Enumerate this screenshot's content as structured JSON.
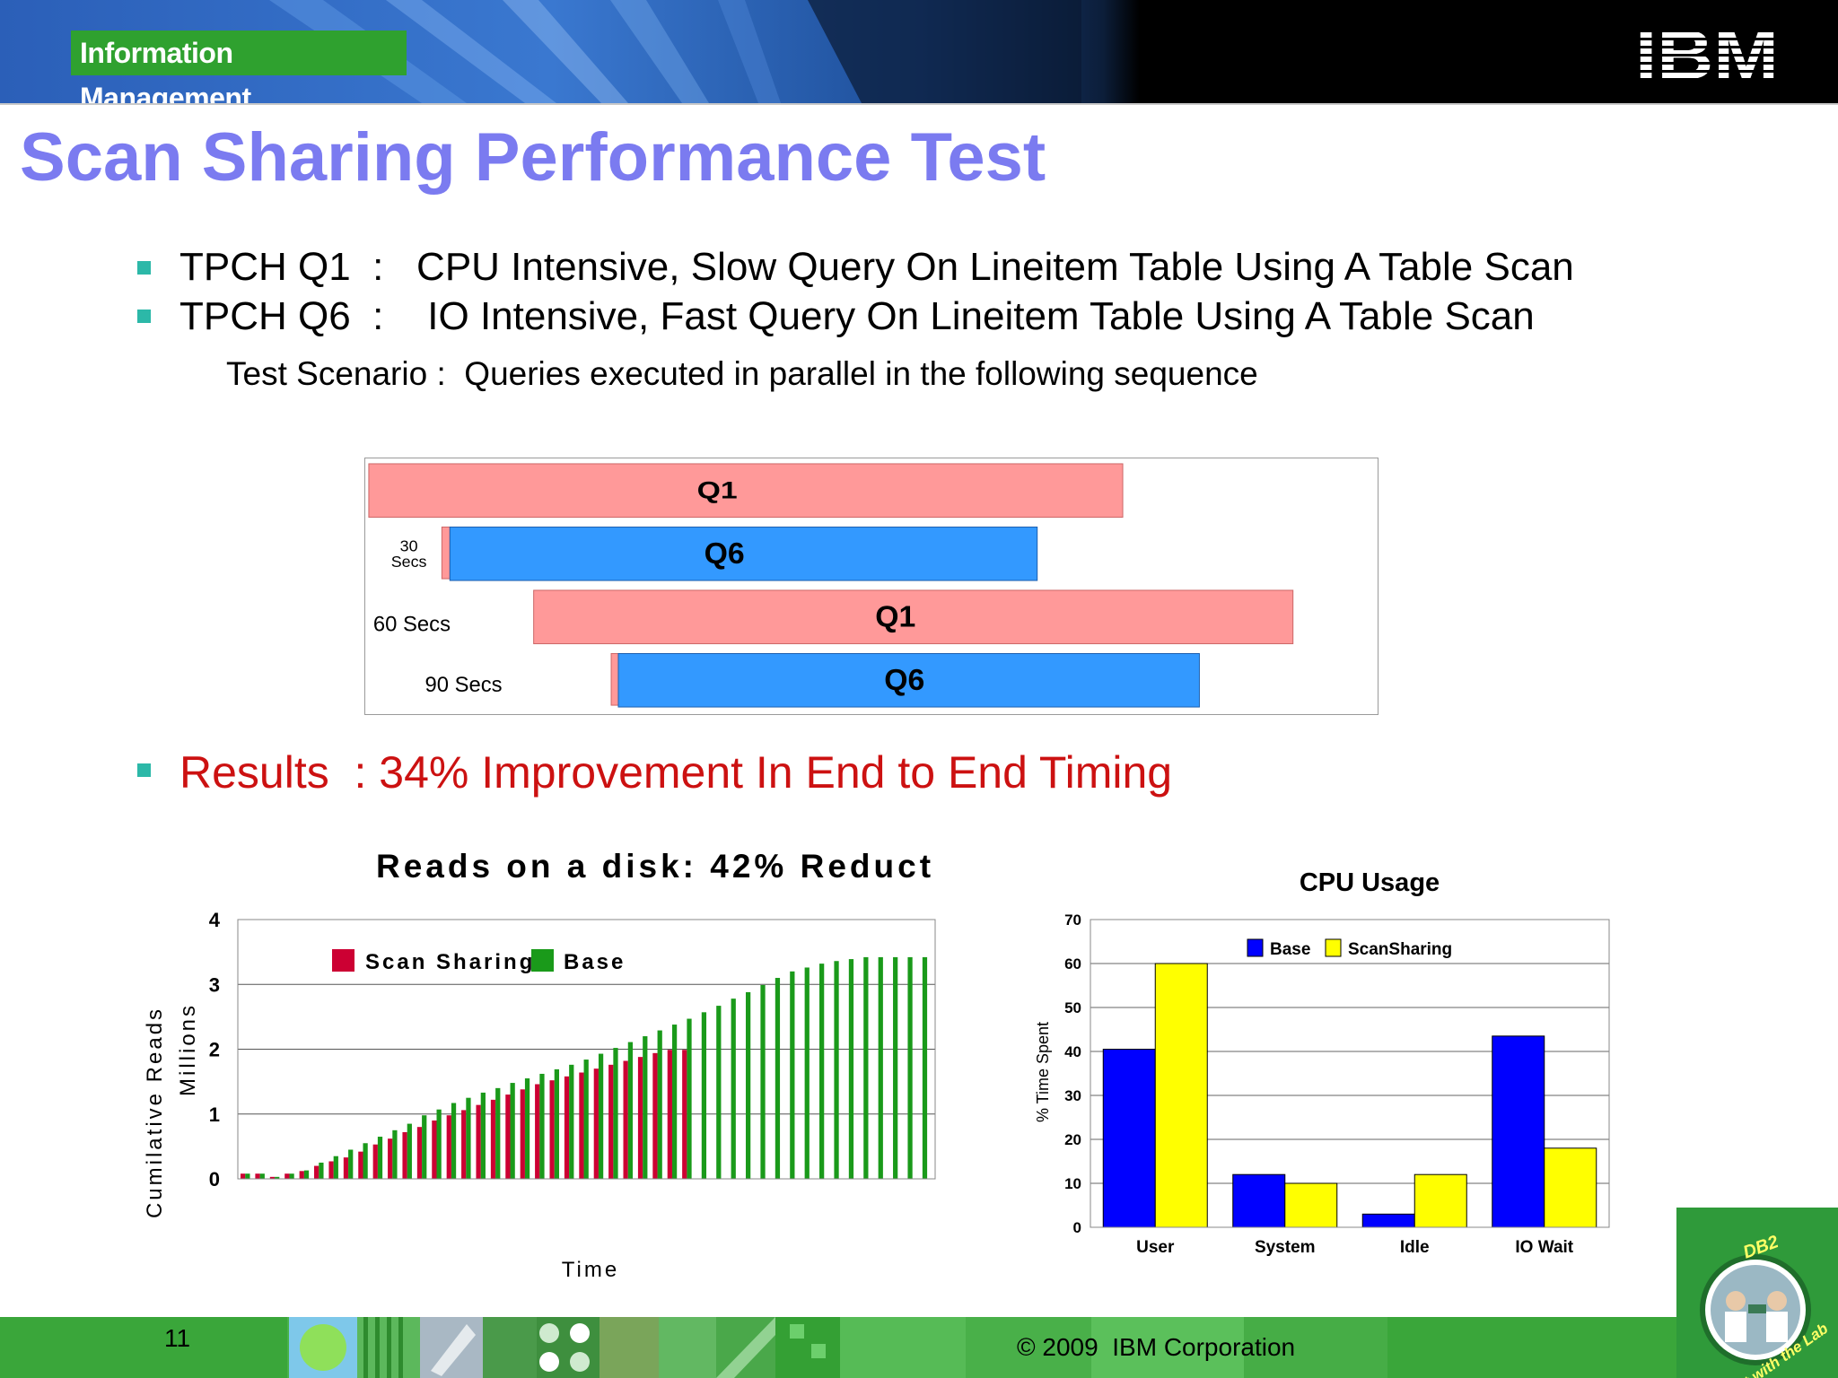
{
  "header": {
    "brand": "Information Management",
    "logo_text": "IBM"
  },
  "title": "Scan Sharing Performance Test",
  "bullets": [
    "TPCH Q1  :   CPU Intensive, Slow Query On Lineitem Table Using A Table Scan",
    "TPCH Q6  :    IO Intensive, Fast Query On Lineitem Table Using A Table Scan"
  ],
  "scenario": "Test Scenario :  Queries executed in parallel in the following sequence",
  "diagram": {
    "bars": [
      {
        "label": "Q1",
        "color": "#ff9999"
      },
      {
        "label": "Q6",
        "color": "#3399ff"
      },
      {
        "label": "Q1",
        "color": "#ff9999"
      },
      {
        "label": "Q6",
        "color": "#3399ff"
      }
    ],
    "delay_labels": [
      "30",
      "Secs",
      "60  Secs",
      "90  Secs"
    ]
  },
  "results": "Results  : 34% Improvement In End to End Timing",
  "chart_data": [
    {
      "type": "bar",
      "title": "Reads on a disk: 42% Reduct",
      "xlabel": "Time",
      "ylabel": "Cumilative Reads",
      "ylabel2": "Millions",
      "ylim": [
        0,
        4
      ],
      "yticks": [
        "0",
        "1",
        "2",
        "3",
        "4"
      ],
      "legend": [
        "Scan Sharing",
        "Base"
      ],
      "series": [
        {
          "name": "Scan Sharing",
          "color": "#cc0033",
          "values": [
            0.08,
            0.08,
            0.03,
            0.08,
            0.12,
            0.2,
            0.27,
            0.33,
            0.42,
            0.53,
            0.62,
            0.72,
            0.8,
            0.9,
            0.98,
            1.06,
            1.14,
            1.22,
            1.3,
            1.38,
            1.46,
            1.52,
            1.58,
            1.64,
            1.7,
            1.76,
            1.82,
            1.88,
            1.94,
            1.99,
            1.99
          ]
        },
        {
          "name": "Base",
          "color": "#1a9a1a",
          "values": [
            0.08,
            0.08,
            0.03,
            0.08,
            0.13,
            0.25,
            0.35,
            0.45,
            0.55,
            0.65,
            0.75,
            0.85,
            0.98,
            1.07,
            1.17,
            1.25,
            1.33,
            1.4,
            1.48,
            1.55,
            1.62,
            1.69,
            1.76,
            1.84,
            1.93,
            2.02,
            2.11,
            2.2,
            2.29,
            2.38,
            2.47,
            2.57,
            2.67,
            2.78,
            2.88,
            2.99,
            3.1,
            3.2,
            3.26,
            3.32,
            3.36,
            3.39,
            3.42,
            3.42,
            3.42,
            3.42,
            3.42
          ]
        }
      ]
    },
    {
      "type": "bar",
      "title": "CPU Usage",
      "ylabel": "% Time Spent",
      "ylim": [
        0,
        70
      ],
      "yticks": [
        "0",
        "10",
        "20",
        "30",
        "40",
        "50",
        "60",
        "70"
      ],
      "categories": [
        "User",
        "System",
        "Idle",
        "IO Wait"
      ],
      "series": [
        {
          "name": "Base",
          "color": "#0000ff",
          "values": [
            40.5,
            12,
            3,
            43.5
          ]
        },
        {
          "name": "ScanSharing",
          "color": "#ffff00",
          "values": [
            60,
            10,
            12,
            18
          ]
        }
      ]
    }
  ],
  "footer": {
    "page": "11",
    "copyright": "© 2009  IBM Corporation",
    "badge_top": "DB2",
    "badge_bottom": "Chat with the Lab"
  }
}
